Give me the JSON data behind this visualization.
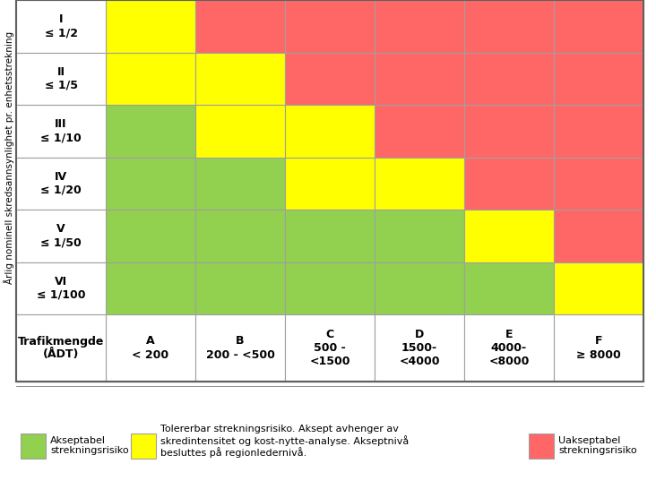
{
  "rows": [
    "I\n≤ 1/2",
    "II\n≤ 1/5",
    "III\n≤ 1/10",
    "IV\n≤ 1/20",
    "V\n≤ 1/50",
    "VI\n≤ 1/100"
  ],
  "cols_header": [
    "A\n< 200",
    "B\n200 - <500",
    "C\n500 -\n<1500",
    "D\n1500-\n<4000",
    "E\n4000-\n<8000",
    "F\n≥ 8000"
  ],
  "grid_colors": [
    [
      "yellow",
      "red",
      "red",
      "red",
      "red",
      "red"
    ],
    [
      "yellow",
      "yellow",
      "red",
      "red",
      "red",
      "red"
    ],
    [
      "green",
      "yellow",
      "yellow",
      "red",
      "red",
      "red"
    ],
    [
      "green",
      "green",
      "yellow",
      "yellow",
      "red",
      "red"
    ],
    [
      "green",
      "green",
      "green",
      "green",
      "yellow",
      "red"
    ],
    [
      "green",
      "green",
      "green",
      "green",
      "green",
      "yellow"
    ]
  ],
  "color_map": {
    "green": "#92D050",
    "yellow": "#FFFF00",
    "red": "#FF6666"
  },
  "ylabel": "Årlig nominell skredsannsynlighet pr. enhetsstrekning",
  "corner_label": "Trafikmengde\n(ÅDT)",
  "legend_green_label": "Akseptabel\nstrekningsrisiko",
  "legend_yellow_label": "Tolererbar strekningsrisiko. Aksept avhenger av\nskredintensitet og kost-nytte-analyse. Akseptnivå\nbesluttes på regionledernivå.",
  "legend_red_label": "Uakseptabel\nstrekningsrisiko",
  "border_color": "#A0A0A0",
  "text_color": "#000000",
  "background_color": "#FFFFFF",
  "figsize": [
    7.32,
    5.56
  ],
  "dpi": 100
}
